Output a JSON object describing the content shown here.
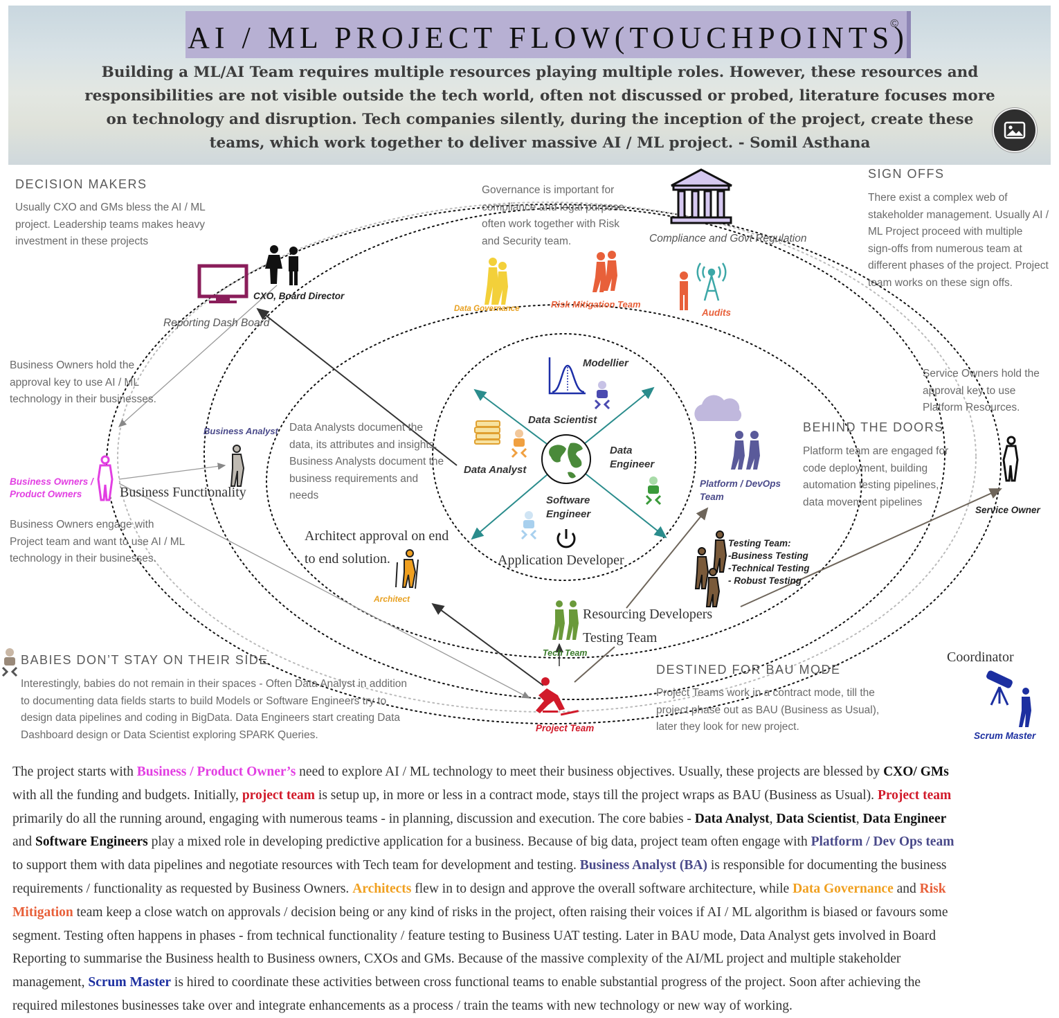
{
  "header": {
    "title": "AI / ML PROJECT FLOW(TOUCHPOINTS)",
    "copyright": "©",
    "subtitle": "Building a ML/AI Team requires multiple resources playing multiple roles. However, these resources and responsibilities are not visible outside the tech world, often not discussed or probed, literature focuses more on technology and disruption. Tech companies silently, during the inception of the project, create these teams, which work together to deliver massive AI / ML project. - Somil Asthana"
  },
  "sections": {
    "decision_makers": {
      "heading": "DECISION MAKERS",
      "lines": [
        "Usually CXO and GMs bless the AI / ML",
        "project. Leadership teams makes heavy",
        "investment in these projects"
      ]
    },
    "governance": {
      "lines": [
        "Governance is important for",
        "compliance and legal purpose",
        "often work together with Risk",
        "and Security team."
      ]
    },
    "sign_offs": {
      "heading": "SIGN OFFS",
      "lines": [
        "There exist a complex web of",
        "stakeholder management. Usually AI /",
        "ML Project proceed with multiple",
        "sign-offs from numerous team at",
        "different phases of the project. Project",
        "team works on these sign offs."
      ]
    },
    "business_owners_key": {
      "lines": [
        "Business Owners hold the",
        "approval key to use AI / ML",
        "technology in their businesses."
      ]
    },
    "business_owners_engage": {
      "lines": [
        "Business Owners engage with",
        "Project team and want to use AI / ML",
        "technology in their businesses."
      ]
    },
    "data_analysts": {
      "lines": [
        "Data Analysts document the",
        "data, its attributes and insights.",
        "Business Analysts document the",
        "business requirements and",
        "needs"
      ]
    },
    "service_owners": {
      "lines": [
        "Service Owners hold the",
        "approval key to use",
        "Platform Resources."
      ]
    },
    "behind_doors": {
      "heading": "BEHIND THE DOORS",
      "lines": [
        "Platform team are engaged for",
        "code deployment, building",
        "automation testing pipelines,",
        "data movement pipelines"
      ]
    },
    "babies": {
      "heading": "BABIES DON’T STAY ON THEIR SIDE",
      "lines": [
        "Interestingly, babies do not remain in their spaces - Often Data Analyst in addition",
        "to documenting data fields starts to build Models or Software Engineers try to",
        "design data pipelines and coding in BigData. Data Engineers start creating Data",
        "Dashboard design  or Data Scientist exploring SPARK Queries."
      ]
    },
    "bau": {
      "heading": "DESTINED FOR BAU MODE",
      "lines": [
        "Project Teams work in a contract mode, till the",
        "project phase out as BAU (Business as Usual),",
        "later they look for new project."
      ]
    }
  },
  "labels": {
    "compliance": "Compliance and Govt Regulation",
    "cxo": "CXO, Board Director",
    "dashboard": "Reporting Dash Board",
    "data_governance": "Data Governance",
    "risk": "Risk Mitigation Team",
    "audits": "Audits",
    "modellier": "Modellier",
    "data_scientist": "Data Scientist",
    "data_analyst": "Data Analyst",
    "data_engineer": [
      "Data",
      "Engineer"
    ],
    "software_engineer": [
      "Software",
      "Engineer"
    ],
    "app_dev": "Application Developer",
    "platform": [
      "Platform / DevOps",
      "Team"
    ],
    "business_analyst": "Business Analyst",
    "business_owners": [
      "Business Owners /",
      "Product Owners"
    ],
    "business_functionality": "Business Functionality",
    "architect_approval": [
      "Architect approval on end",
      "to end solution."
    ],
    "architect": "Architect",
    "testing_team": [
      "Testing Team:",
      "-Business Testing",
      "-Technical Testing",
      " - Robust Testing"
    ],
    "service_owner": "Service Owner",
    "resourcing": "Resourcing Developers",
    "testing": "Testing Team",
    "tech_team": "Tech Team",
    "project_team": "Project Team",
    "coordinator": "Coordinator",
    "scrum": "Scrum Master"
  },
  "paragraph": {
    "lines": [
      [
        {
          "t": "The project starts with "
        },
        {
          "t": "Business / Product Owner’s",
          "c": "#e23fe2",
          "b": true
        },
        {
          "t": " need to explore AI / ML technology to meet their business objectives. Usually, these projects are blessed by "
        },
        {
          "t": "CXO/ GMs",
          "c": "#111",
          "b": true
        }
      ],
      [
        {
          "t": "with all the funding and budgets. Initially, "
        },
        {
          "t": "project team",
          "c": "#d11a2a",
          "b": true
        },
        {
          "t": " is setup up, in more or less in a contract mode, stays till the project wraps as BAU (Business as Usual). "
        },
        {
          "t": "Project team",
          "c": "#d11a2a",
          "b": true
        }
      ],
      [
        {
          "t": "primarily do all the running around, engaging with numerous teams - in planning, discussion and execution. The core babies - "
        },
        {
          "t": "Data Analyst",
          "c": "#111",
          "b": true
        },
        {
          "t": ", "
        },
        {
          "t": "Data Scientist",
          "c": "#111",
          "b": true
        },
        {
          "t": ", "
        },
        {
          "t": "Data Engineer",
          "c": "#111",
          "b": true
        }
      ],
      [
        {
          "t": "and "
        },
        {
          "t": "Software Engineers",
          "c": "#111",
          "b": true
        },
        {
          "t": " play a mixed role in developing predictive application for a business. Because of big data, project team often engage with "
        },
        {
          "t": "Platform / Dev Ops team",
          "c": "#4a4a8a",
          "b": true
        }
      ],
      [
        {
          "t": "to support them with data pipelines and negotiate resources with Tech team for development and testing. "
        },
        {
          "t": "Business Analyst (BA)",
          "c": "#4a4a8a",
          "b": true
        },
        {
          "t": " is responsible for documenting the business"
        }
      ],
      [
        {
          "t": "requirements / functionality as requested by Business Owners. "
        },
        {
          "t": "Architects",
          "c": "#f0a020",
          "b": true
        },
        {
          "t": " flew in to design and approve the overall software architecture, while "
        },
        {
          "t": "Data Governance",
          "c": "#f0a020",
          "b": true
        },
        {
          "t": " and "
        },
        {
          "t": "Risk",
          "c": "#e8603a",
          "b": true
        }
      ],
      [
        {
          "t": "Mitigation",
          "c": "#e8603a",
          "b": true
        },
        {
          "t": " team keep a close watch on approvals / decision being or any kind of risks in the project, often raising their voices if AI / ML algorithm is biased or favours some"
        }
      ],
      [
        {
          "t": "segment. Testing often happens in phases - from technical functionality / feature testing to Business UAT testing.  Later in BAU mode, Data Analyst gets involved in Board"
        }
      ],
      [
        {
          "t": "Reporting to summarise the Business health to Business owners, CXOs and GMs. Because of the massive complexity of the AI/ML project and multiple stakeholder"
        }
      ],
      [
        {
          "t": "management, "
        },
        {
          "t": "Scrum Master",
          "c": "#1c2fa0",
          "b": true
        },
        {
          "t": " is hired to coordinate these activities between cross functional teams to enable substantial progress of the project.  Soon after achieving the"
        }
      ],
      [
        {
          "t": "required milestones businesses take over and integrate enhancements as a process  / train  the teams with new technology or new way of working."
        }
      ]
    ]
  },
  "colors": {
    "title_bg": "#b7b0d3",
    "pink": "#e23fe2",
    "red": "#d11a2a",
    "orange": "#e8603a",
    "gold": "#f0a020",
    "navy": "#4a4a8a",
    "blue": "#1c2fa0",
    "teal": "#2a8c8c",
    "green": "#3a7a2a"
  }
}
